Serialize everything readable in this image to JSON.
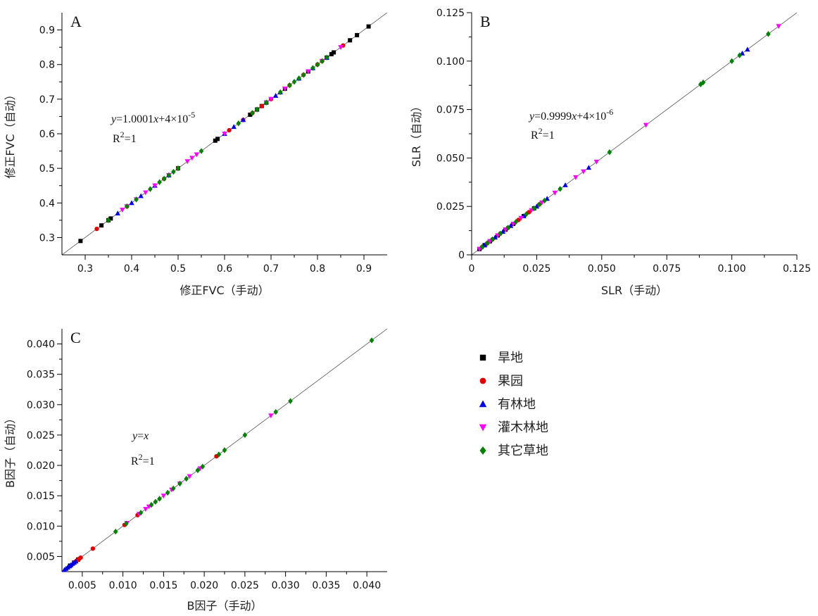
{
  "series_styles": [
    {
      "key": "dryland",
      "name": "旱地",
      "color": "#000000",
      "marker": "square"
    },
    {
      "key": "orchard",
      "name": "果园",
      "color": "#e00000",
      "marker": "circle"
    },
    {
      "key": "forest",
      "name": "有林地",
      "color": "#0000e0",
      "marker": "triangle-up"
    },
    {
      "key": "shrub",
      "name": "灌木林地",
      "color": "#ff00ff",
      "marker": "triangle-down"
    },
    {
      "key": "grass",
      "name": "其它草地",
      "color": "#008000",
      "marker": "diamond"
    }
  ],
  "chart_data": [
    {
      "type": "scatter",
      "panel": "A",
      "title": "",
      "xlabel": "修正FVC（手动）",
      "ylabel": "修正FVC（自动）",
      "xlim": [
        0.25,
        0.95
      ],
      "ylim": [
        0.25,
        0.95
      ],
      "xticks": [
        "0.3",
        "0.4",
        "0.5",
        "0.6",
        "0.7",
        "0.8",
        "0.9"
      ],
      "yticks": [
        "0.3",
        "0.4",
        "0.5",
        "0.6",
        "0.7",
        "0.8",
        "0.9"
      ],
      "fit": {
        "slope": 1.0001,
        "intercept": 4e-05
      },
      "equation": {
        "y": "y",
        "rest": "=1.0001",
        "x": "x",
        "tail": "+4×10",
        "exp": "-5"
      },
      "r2": {
        "r": "R",
        "sup": "2",
        "val": "=1"
      },
      "series": [
        {
          "key": "dryland",
          "values": [
            0.29,
            0.335,
            0.35,
            0.355,
            0.5,
            0.58,
            0.585,
            0.655,
            0.67,
            0.68,
            0.69,
            0.73,
            0.78,
            0.82,
            0.83,
            0.835,
            0.87,
            0.885,
            0.91
          ]
        },
        {
          "key": "orchard",
          "values": [
            0.325,
            0.39,
            0.47,
            0.5,
            0.61,
            0.64,
            0.66,
            0.68,
            0.7,
            0.74,
            0.77,
            0.8,
            0.81,
            0.855
          ]
        },
        {
          "key": "forest",
          "values": [
            0.37,
            0.4,
            0.42,
            0.45,
            0.48,
            0.6,
            0.62,
            0.64,
            0.71,
            0.72,
            0.76,
            0.79,
            0.82
          ]
        },
        {
          "key": "shrub",
          "values": [
            0.38,
            0.39,
            0.41,
            0.43,
            0.45,
            0.48,
            0.52,
            0.53,
            0.54,
            0.6,
            0.69,
            0.7,
            0.73,
            0.78,
            0.81,
            0.85
          ]
        },
        {
          "key": "grass",
          "values": [
            0.35,
            0.39,
            0.41,
            0.44,
            0.46,
            0.47,
            0.48,
            0.49,
            0.5,
            0.55,
            0.63,
            0.66,
            0.67,
            0.69,
            0.72,
            0.74,
            0.75,
            0.76,
            0.77,
            0.79,
            0.8,
            0.81,
            0.82
          ]
        }
      ]
    },
    {
      "type": "scatter",
      "panel": "B",
      "title": "",
      "xlabel": "SLR（手动）",
      "ylabel": "SLR（自动）",
      "xlim": [
        0,
        0.125
      ],
      "ylim": [
        0,
        0.125
      ],
      "xticks": [
        "0",
        "0.025",
        "0.050",
        "0.075",
        "0.100",
        "0.125"
      ],
      "yticks": [
        "0",
        "0.025",
        "0.050",
        "0.075",
        "0.100",
        "0.125"
      ],
      "fit": {
        "slope": 0.9999,
        "intercept": 4e-06
      },
      "equation": {
        "y": "y",
        "rest": "=0.9999",
        "x": "x",
        "tail": "+4×10",
        "exp": "-6"
      },
      "r2": {
        "r": "R",
        "sup": "2",
        "val": "=1"
      },
      "series": [
        {
          "key": "dryland",
          "values": [
            0.003,
            0.005,
            0.007,
            0.01,
            0.013,
            0.016,
            0.02,
            0.024
          ]
        },
        {
          "key": "orchard",
          "values": [
            0.004,
            0.006,
            0.008,
            0.011,
            0.014,
            0.018,
            0.022,
            0.026
          ]
        },
        {
          "key": "forest",
          "values": [
            0.005,
            0.009,
            0.012,
            0.015,
            0.02,
            0.025,
            0.029,
            0.036,
            0.045,
            0.104,
            0.106
          ]
        },
        {
          "key": "shrub",
          "values": [
            0.003,
            0.007,
            0.01,
            0.013,
            0.016,
            0.019,
            0.023,
            0.027,
            0.032,
            0.04,
            0.043,
            0.048,
            0.067,
            0.118
          ]
        },
        {
          "key": "grass",
          "values": [
            0.004,
            0.006,
            0.008,
            0.011,
            0.014,
            0.017,
            0.021,
            0.024,
            0.026,
            0.028,
            0.034,
            0.053,
            0.088,
            0.089,
            0.1,
            0.103,
            0.114
          ]
        }
      ]
    },
    {
      "type": "scatter",
      "panel": "C",
      "title": "",
      "xlabel": "B因子（手动）",
      "ylabel": "B因子（自动）",
      "xlim": [
        0.0025,
        0.0425
      ],
      "ylim": [
        0.0025,
        0.0425
      ],
      "xticks": [
        "0.005",
        "0.010",
        "0.015",
        "0.020",
        "0.025",
        "0.030",
        "0.035",
        "0.040"
      ],
      "yticks": [
        "0.005",
        "0.010",
        "0.015",
        "0.020",
        "0.025",
        "0.030",
        "0.035",
        "0.040"
      ],
      "fit": {
        "slope": 1,
        "intercept": 0
      },
      "equation": {
        "y": "y",
        "rest": "=",
        "x": "x",
        "tail": "",
        "exp": ""
      },
      "r2": {
        "r": "R",
        "sup": "2",
        "val": "=1"
      },
      "series": [
        {
          "key": "dryland",
          "values": [
            0.0035,
            0.004,
            0.0045
          ]
        },
        {
          "key": "orchard",
          "values": [
            0.004,
            0.0043,
            0.0046,
            0.0048,
            0.0063,
            0.0102,
            0.0118,
            0.0215
          ]
        },
        {
          "key": "forest",
          "values": [
            0.0028,
            0.003,
            0.0032,
            0.0034,
            0.0036,
            0.0038,
            0.004,
            0.0042
          ]
        },
        {
          "key": "shrub",
          "values": [
            0.0105,
            0.012,
            0.0128,
            0.0132,
            0.015,
            0.016,
            0.017,
            0.0182,
            0.0195,
            0.0282
          ]
        },
        {
          "key": "grass",
          "values": [
            0.0091,
            0.0104,
            0.0122,
            0.0135,
            0.014,
            0.0145,
            0.0155,
            0.0162,
            0.017,
            0.0178,
            0.0192,
            0.0198,
            0.0218,
            0.0225,
            0.025,
            0.0288,
            0.0306,
            0.0406
          ]
        }
      ]
    }
  ]
}
